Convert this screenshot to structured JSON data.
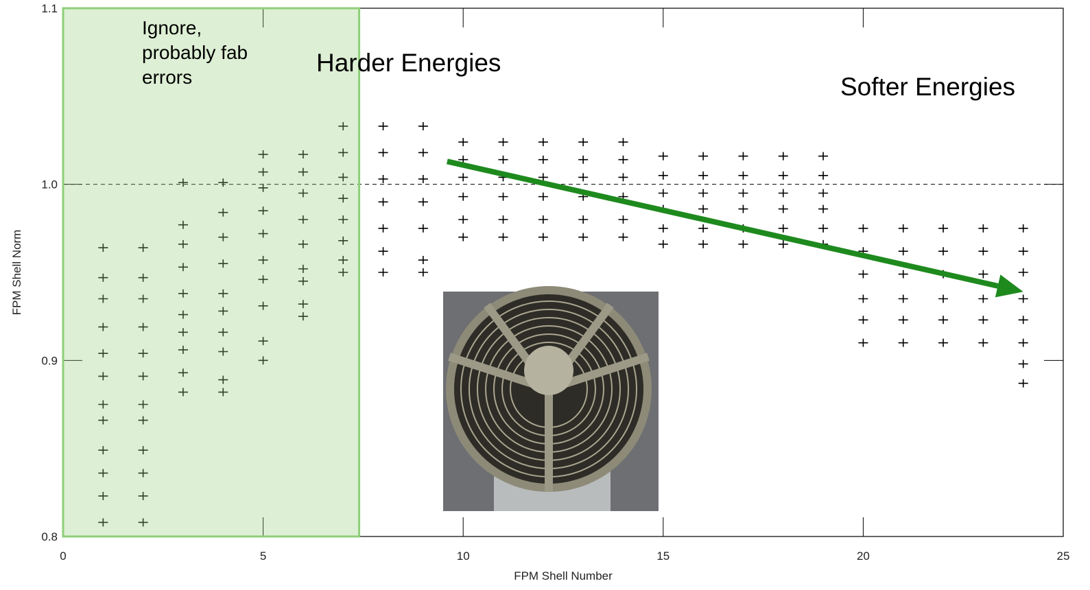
{
  "chart_data": {
    "type": "scatter",
    "xlabel": "FPM Shell Number",
    "ylabel": "FPM Shell Norm",
    "xlim": [
      0,
      25
    ],
    "ylim": [
      0.8,
      1.1
    ],
    "xticks": [
      0,
      5,
      10,
      15,
      20,
      25
    ],
    "yticks": [
      0.8,
      0.9,
      {
        "value": 1,
        "label": "1.0"
      },
      1.1
    ],
    "reference_line": 1,
    "shaded_region": [
      0,
      7.4
    ],
    "color": "#000000",
    "annotations": [
      {
        "text": "Ignore,"
      },
      {
        "text": "probably fab"
      },
      {
        "text": "errors"
      },
      {
        "text": "Harder Energies"
      },
      {
        "text": "Softer Energies"
      }
    ],
    "arrow": {
      "x": [
        9.6,
        24
      ],
      "y": [
        1.013,
        0.939
      ],
      "color": "#1e8a1e"
    },
    "x": [
      1,
      1,
      1,
      1,
      1,
      1,
      1,
      1,
      1,
      1,
      1,
      1,
      2,
      2,
      2,
      2,
      2,
      2,
      2,
      2,
      2,
      2,
      2,
      2,
      3,
      3,
      3,
      3,
      3,
      3,
      3,
      3,
      3,
      3,
      4,
      4,
      4,
      4,
      4,
      4,
      4,
      4,
      4,
      4,
      5,
      5,
      5,
      5,
      5,
      5,
      5,
      5,
      5,
      5,
      6,
      6,
      6,
      6,
      6,
      6,
      6,
      6,
      6,
      7,
      7,
      7,
      7,
      7,
      7,
      7,
      7,
      8,
      8,
      8,
      8,
      8,
      8,
      8,
      9,
      9,
      9,
      9,
      9,
      9,
      9,
      10,
      10,
      10,
      10,
      10,
      10,
      11,
      11,
      11,
      11,
      11,
      11,
      12,
      12,
      12,
      12,
      12,
      12,
      13,
      13,
      13,
      13,
      13,
      13,
      14,
      14,
      14,
      14,
      14,
      14,
      15,
      15,
      15,
      15,
      15,
      15,
      16,
      16,
      16,
      16,
      16,
      16,
      17,
      17,
      17,
      17,
      17,
      17,
      18,
      18,
      18,
      18,
      18,
      18,
      19,
      19,
      19,
      19,
      19,
      19,
      20,
      20,
      20,
      20,
      20,
      20,
      21,
      21,
      21,
      21,
      21,
      21,
      22,
      22,
      22,
      22,
      22,
      22,
      23,
      23,
      23,
      23,
      23,
      23,
      24,
      24,
      24,
      24,
      24,
      24,
      24,
      24
    ],
    "values": [
      0.964,
      0.947,
      0.935,
      0.919,
      0.904,
      0.891,
      0.875,
      0.866,
      0.849,
      0.836,
      0.823,
      0.808,
      0.964,
      0.947,
      0.935,
      0.919,
      0.904,
      0.891,
      0.875,
      0.866,
      0.849,
      0.836,
      0.823,
      0.808,
      1.001,
      0.977,
      0.966,
      0.953,
      0.938,
      0.926,
      0.916,
      0.906,
      0.893,
      0.882,
      1.001,
      0.984,
      0.97,
      0.955,
      0.938,
      0.928,
      0.916,
      0.905,
      0.889,
      0.882,
      1.017,
      1.007,
      0.998,
      0.985,
      0.972,
      0.957,
      0.946,
      0.931,
      0.911,
      0.9,
      1.017,
      1.007,
      0.995,
      0.98,
      0.966,
      0.952,
      0.945,
      0.932,
      0.925,
      1.033,
      1.018,
      1.004,
      0.992,
      0.98,
      0.968,
      0.957,
      0.95,
      1.033,
      1.018,
      1.003,
      0.99,
      0.975,
      0.962,
      0.95,
      1.033,
      1.018,
      1.003,
      0.99,
      0.975,
      0.957,
      0.95,
      1.024,
      1.014,
      1.004,
      0.993,
      0.98,
      0.97,
      1.024,
      1.014,
      1.004,
      0.993,
      0.98,
      0.97,
      1.024,
      1.014,
      1.004,
      0.993,
      0.98,
      0.97,
      1.024,
      1.014,
      1.004,
      0.993,
      0.98,
      0.97,
      1.024,
      1.014,
      1.004,
      0.993,
      0.98,
      0.97,
      1.016,
      1.005,
      0.995,
      0.986,
      0.975,
      0.966,
      1.016,
      1.005,
      0.995,
      0.986,
      0.975,
      0.966,
      1.016,
      1.005,
      0.995,
      0.986,
      0.975,
      0.966,
      1.016,
      1.005,
      0.995,
      0.986,
      0.975,
      0.966,
      1.016,
      1.005,
      0.995,
      0.986,
      0.975,
      0.966,
      0.975,
      0.962,
      0.949,
      0.935,
      0.923,
      0.91,
      0.975,
      0.962,
      0.949,
      0.935,
      0.923,
      0.91,
      0.975,
      0.962,
      0.949,
      0.935,
      0.923,
      0.91,
      0.975,
      0.962,
      0.949,
      0.935,
      0.923,
      0.91,
      0.975,
      0.962,
      0.95,
      0.935,
      0.923,
      0.91,
      0.898,
      0.887
    ]
  }
}
